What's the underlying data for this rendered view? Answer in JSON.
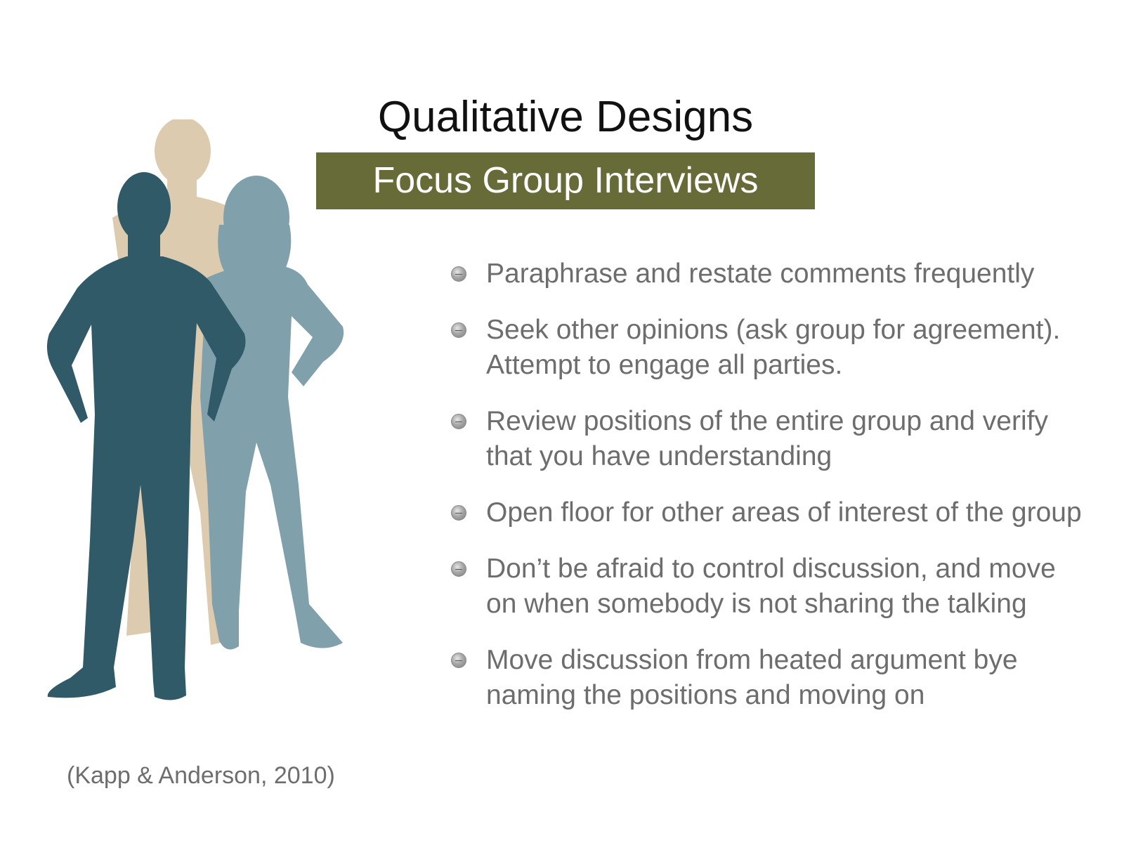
{
  "slide": {
    "title": "Qualitative Designs",
    "banner": "Focus Group Interviews",
    "citation": "(Kapp & Anderson, 2010)",
    "bullets": [
      {
        "text": "Paraphrase and restate comments frequently"
      },
      {
        "text": "Seek other opinions (ask group for agreement). Attempt to engage all parties."
      },
      {
        "text": "Review positions of the entire group and verify that you have understanding"
      },
      {
        "text": "Open floor for other areas of interest of the group"
      },
      {
        "text": "Don’t be afraid to control discussion, and move on when somebody is not sharing the talking"
      },
      {
        "text": "Move discussion from heated argument bye naming the positions and moving on"
      }
    ]
  },
  "colors": {
    "banner_bg": "#676b38",
    "figure_back": "#dccbae",
    "figure_right": "#80a1ac",
    "figure_front": "#305a67"
  },
  "icons": {
    "bullet": "grey-sphere-bullet-icon",
    "figures": "people-silhouettes-icon"
  }
}
